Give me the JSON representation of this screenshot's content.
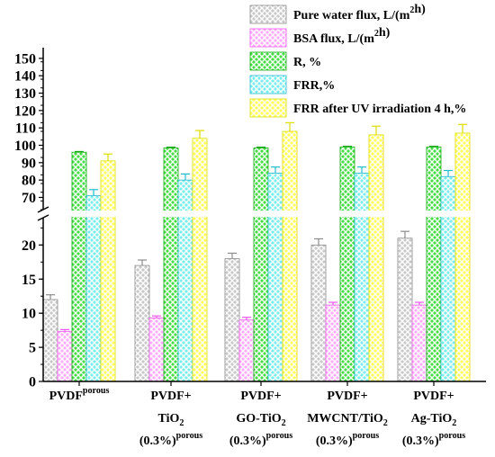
{
  "chart_data": {
    "type": "bar",
    "broken_axis": true,
    "lower_segment": {
      "ylim": [
        0,
        24
      ],
      "ticks": [
        "0",
        "5",
        "10",
        "15",
        "20"
      ]
    },
    "upper_segment": {
      "ylim": [
        63,
        152
      ],
      "ticks": [
        "70",
        "80",
        "90",
        "100",
        "110",
        "120",
        "130",
        "140",
        "150"
      ]
    },
    "legend_position": "top-right",
    "categories": [
      {
        "lines": [
          {
            "text": "PVDF",
            "sup": "porous"
          }
        ]
      },
      {
        "lines": [
          {
            "text": "PVDF+"
          },
          {
            "text": "TiO",
            "sub": "2"
          },
          {
            "text": "(0.3%)",
            "sup": "porous"
          }
        ]
      },
      {
        "lines": [
          {
            "text": "PVDF+"
          },
          {
            "text": "GO-TiO",
            "sub": "2"
          },
          {
            "text": "(0.3%)",
            "sup": "porous"
          }
        ]
      },
      {
        "lines": [
          {
            "text": "PVDF+"
          },
          {
            "text": "MWCNT/TiO",
            "sub": "2"
          },
          {
            "text": "(0.3%)",
            "sup": "porous"
          }
        ]
      },
      {
        "lines": [
          {
            "text": "PVDF+"
          },
          {
            "text": "Ag-TiO",
            "sub": "2"
          },
          {
            "text": "(0.3%)",
            "sup": "porous"
          }
        ]
      }
    ],
    "series": [
      {
        "name": "Pure water flux, L/(m2h)",
        "legend_parts": [
          {
            "text": "Pure water flux, L/(m"
          },
          {
            "sup": "2"
          },
          {
            "text": "h)"
          }
        ],
        "fill": "#c8c8c8",
        "stroke": "#8c8c8c",
        "values": [
          12,
          17,
          18,
          20,
          21
        ],
        "errors": [
          0.7,
          0.8,
          0.8,
          0.9,
          1.0
        ]
      },
      {
        "name": "BSA flux, L/(m2h)",
        "legend_parts": [
          {
            "text": "BSA flux, L/(m"
          },
          {
            "sup": "2"
          },
          {
            "text": "h)"
          }
        ],
        "fill": "#ffaaff",
        "stroke": "#ee55ee",
        "values": [
          7.3,
          9.3,
          9.0,
          11.2,
          11.2
        ],
        "errors": [
          0.3,
          0.3,
          0.4,
          0.4,
          0.4
        ]
      },
      {
        "name": "R, %",
        "legend_parts": [
          {
            "text": "R, %"
          }
        ],
        "fill": "#44dd44",
        "stroke": "#11aa11",
        "values": [
          96,
          98.5,
          98.5,
          99,
          99
        ],
        "errors": [
          0.4,
          0.4,
          0.4,
          0.4,
          0.4
        ]
      },
      {
        "name": "FRR,%",
        "legend_parts": [
          {
            "text": "FRR,%"
          }
        ],
        "fill": "#77eeee",
        "stroke": "#22bbcc",
        "values": [
          71,
          80,
          84,
          84,
          82
        ],
        "errors": [
          3.5,
          3.5,
          3.5,
          3.5,
          3.5
        ]
      },
      {
        "name": "FRR after UV irradiation 4 h,%",
        "legend_parts": [
          {
            "text": "FRR after UV irradiation 4 h,%"
          }
        ],
        "fill": "#ffff55",
        "stroke": "#dddd00",
        "values": [
          91,
          104,
          108,
          106,
          107
        ],
        "errors": [
          4,
          4.5,
          5,
          5,
          5
        ]
      }
    ]
  }
}
